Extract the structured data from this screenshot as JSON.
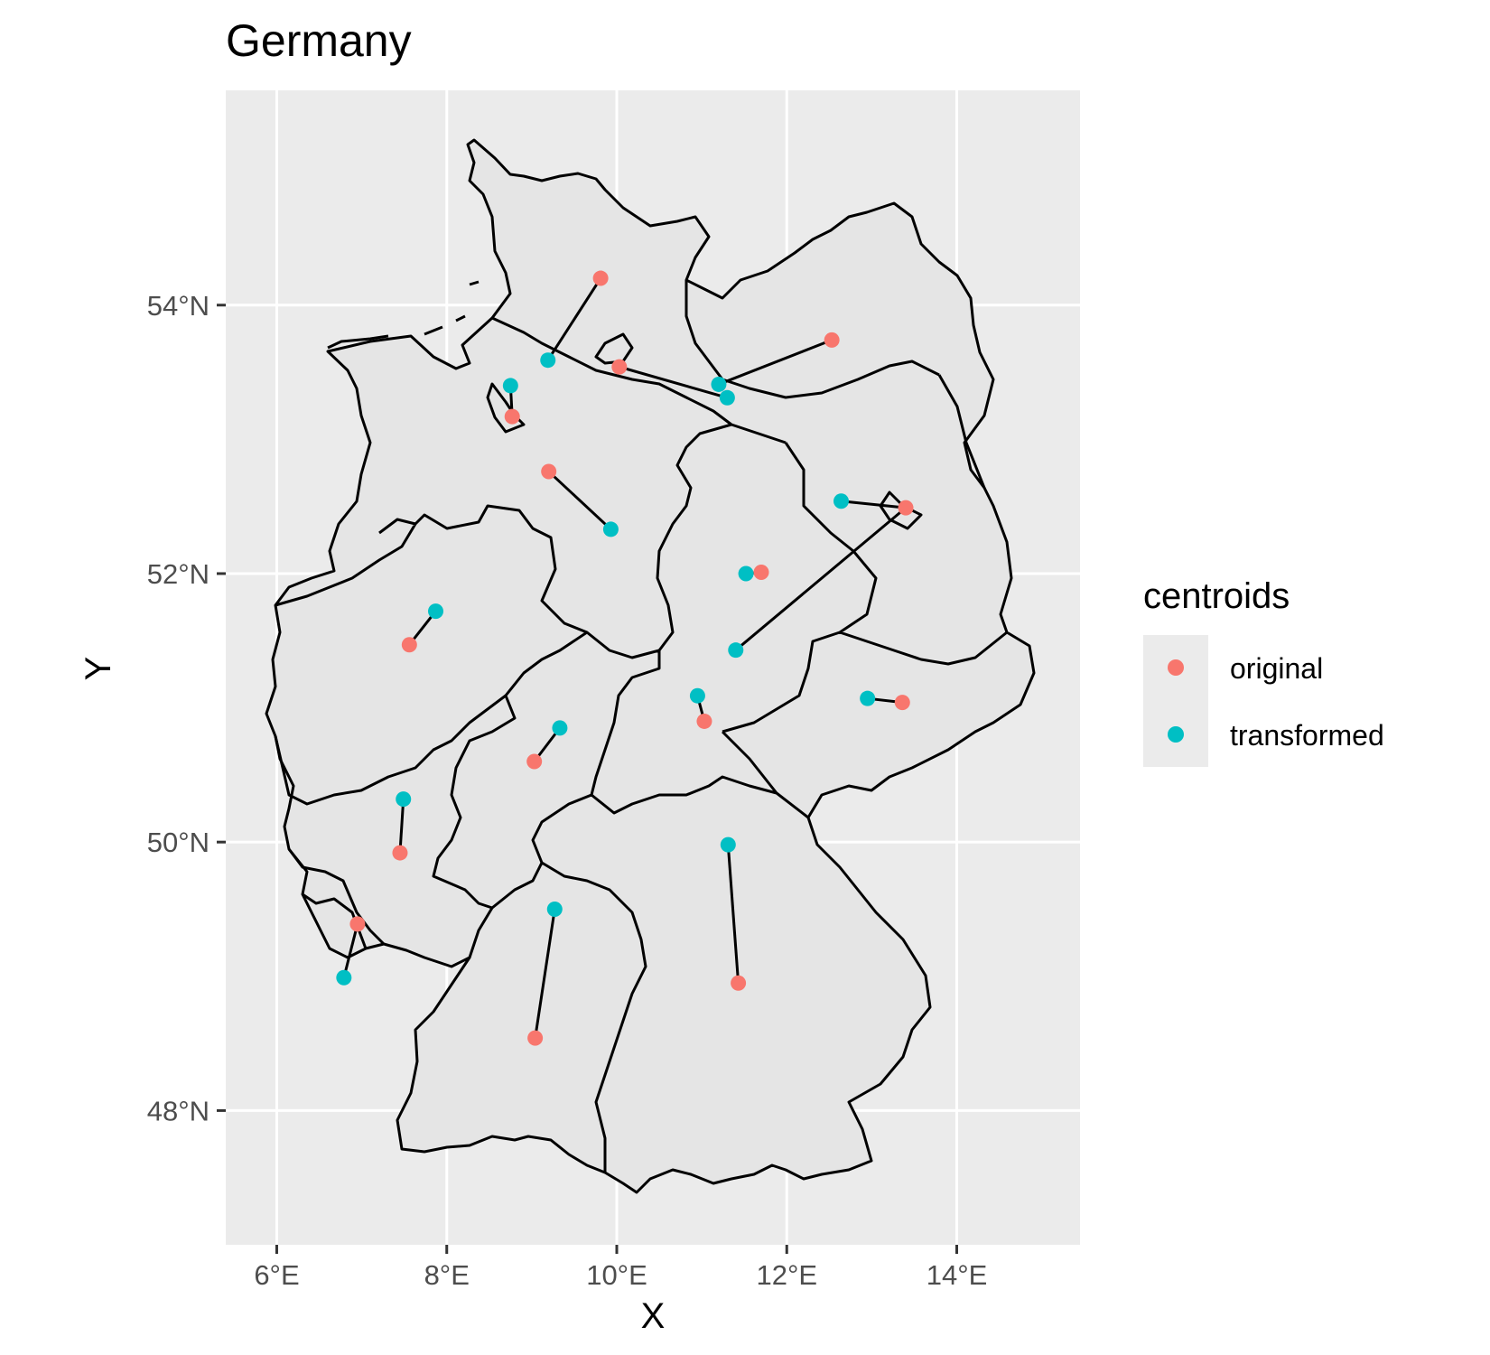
{
  "chart_data": {
    "type": "scatter",
    "title": "Germany",
    "xlabel": "X",
    "ylabel": "Y",
    "xlim": [
      5.4,
      15.45
    ],
    "ylim": [
      47.0,
      55.6
    ],
    "x_ticks": [
      {
        "value": 6,
        "label": "6°E"
      },
      {
        "value": 8,
        "label": "8°E"
      },
      {
        "value": 10,
        "label": "10°E"
      },
      {
        "value": 12,
        "label": "12°E"
      },
      {
        "value": 14,
        "label": "14°E"
      }
    ],
    "y_ticks": [
      {
        "value": 48,
        "label": "48°N"
      },
      {
        "value": 50,
        "label": "50°N"
      },
      {
        "value": 52,
        "label": "52°N"
      },
      {
        "value": 54,
        "label": "54°N"
      }
    ],
    "grid": true,
    "panel_background": "#ebebeb",
    "grid_color": "#ffffff",
    "region_fill": "#e5e5e5",
    "region_stroke": "#000000",
    "legend": {
      "title": "centroids",
      "position": "right",
      "entries": [
        {
          "label": "original",
          "color": "#f8766d"
        },
        {
          "label": "transformed",
          "color": "#00bfc4"
        }
      ]
    },
    "series": [
      {
        "name": "original",
        "color": "#f8766d",
        "points": [
          {
            "x": 9.81,
            "y": 54.2
          },
          {
            "x": 10.03,
            "y": 53.54
          },
          {
            "x": 8.77,
            "y": 53.17
          },
          {
            "x": 12.53,
            "y": 53.74
          },
          {
            "x": 9.2,
            "y": 52.76
          },
          {
            "x": 13.4,
            "y": 52.49
          },
          {
            "x": 11.7,
            "y": 52.01
          },
          {
            "x": 7.56,
            "y": 51.47
          },
          {
            "x": 11.03,
            "y": 50.9
          },
          {
            "x": 13.36,
            "y": 51.04
          },
          {
            "x": 9.03,
            "y": 50.6
          },
          {
            "x": 7.45,
            "y": 49.92
          },
          {
            "x": 6.95,
            "y": 49.39
          },
          {
            "x": 9.04,
            "y": 48.54
          },
          {
            "x": 11.43,
            "y": 48.95
          }
        ]
      },
      {
        "name": "transformed",
        "color": "#00bfc4",
        "points": [
          {
            "x": 9.19,
            "y": 53.59
          },
          {
            "x": 11.3,
            "y": 53.31
          },
          {
            "x": 8.75,
            "y": 53.4
          },
          {
            "x": 11.2,
            "y": 53.41
          },
          {
            "x": 9.93,
            "y": 52.33
          },
          {
            "x": 12.64,
            "y": 52.54
          },
          {
            "x": 11.52,
            "y": 52.0
          },
          {
            "x": 7.87,
            "y": 51.72
          },
          {
            "x": 11.4,
            "y": 51.43
          },
          {
            "x": 10.95,
            "y": 51.09
          },
          {
            "x": 12.95,
            "y": 51.07
          },
          {
            "x": 9.33,
            "y": 50.85
          },
          {
            "x": 7.49,
            "y": 50.32
          },
          {
            "x": 6.79,
            "y": 48.99
          },
          {
            "x": 9.27,
            "y": 49.5
          },
          {
            "x": 11.31,
            "y": 49.98
          }
        ]
      }
    ],
    "segments": [
      [
        9.81,
        54.2,
        9.19,
        53.59
      ],
      [
        10.03,
        53.54,
        11.3,
        53.31
      ],
      [
        8.77,
        53.17,
        8.75,
        53.4
      ],
      [
        12.53,
        53.74,
        11.2,
        53.41
      ],
      [
        9.2,
        52.76,
        9.93,
        52.33
      ],
      [
        13.4,
        52.49,
        12.64,
        52.54
      ],
      [
        13.4,
        52.49,
        11.4,
        51.43
      ],
      [
        11.7,
        52.01,
        11.52,
        52.0
      ],
      [
        7.56,
        51.47,
        7.87,
        51.72
      ],
      [
        11.03,
        50.9,
        10.95,
        51.09
      ],
      [
        13.36,
        51.04,
        12.95,
        51.07
      ],
      [
        9.03,
        50.6,
        9.33,
        50.85
      ],
      [
        7.45,
        49.92,
        7.49,
        50.32
      ],
      [
        6.95,
        49.39,
        6.79,
        48.99
      ],
      [
        9.04,
        48.54,
        9.27,
        49.5
      ],
      [
        11.43,
        48.95,
        11.31,
        49.98
      ]
    ]
  }
}
